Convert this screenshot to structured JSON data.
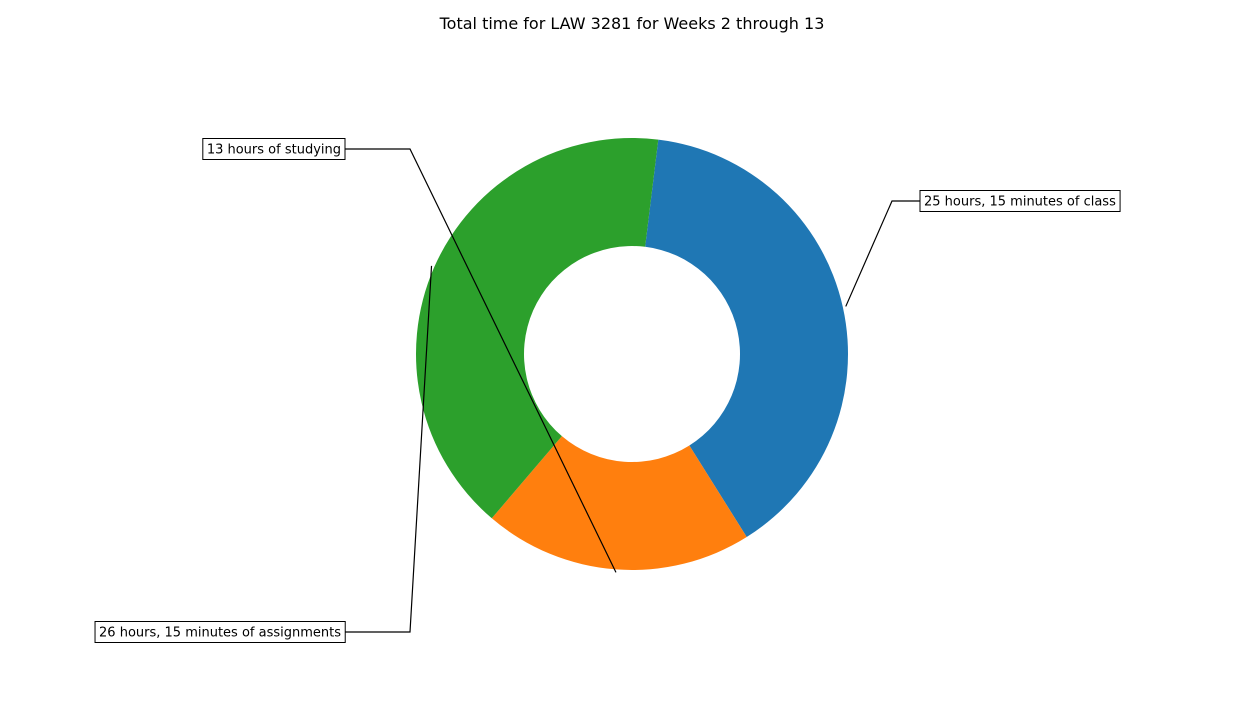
{
  "chart_data": {
    "type": "pie",
    "variant": "donut",
    "title": "Total time for LAW 3281 for Weeks 2 through 13",
    "slices": [
      {
        "label": "25 hours, 15 minutes of class",
        "value": 25.25,
        "color": "#1f77b4"
      },
      {
        "label": "13 hours of studying",
        "value": 13,
        "color": "#ff7f0e"
      },
      {
        "label": "26 hours, 15 minutes of assignments",
        "value": 26.25,
        "color": "#2ca02c"
      }
    ],
    "legend": "none",
    "grid": false
  }
}
